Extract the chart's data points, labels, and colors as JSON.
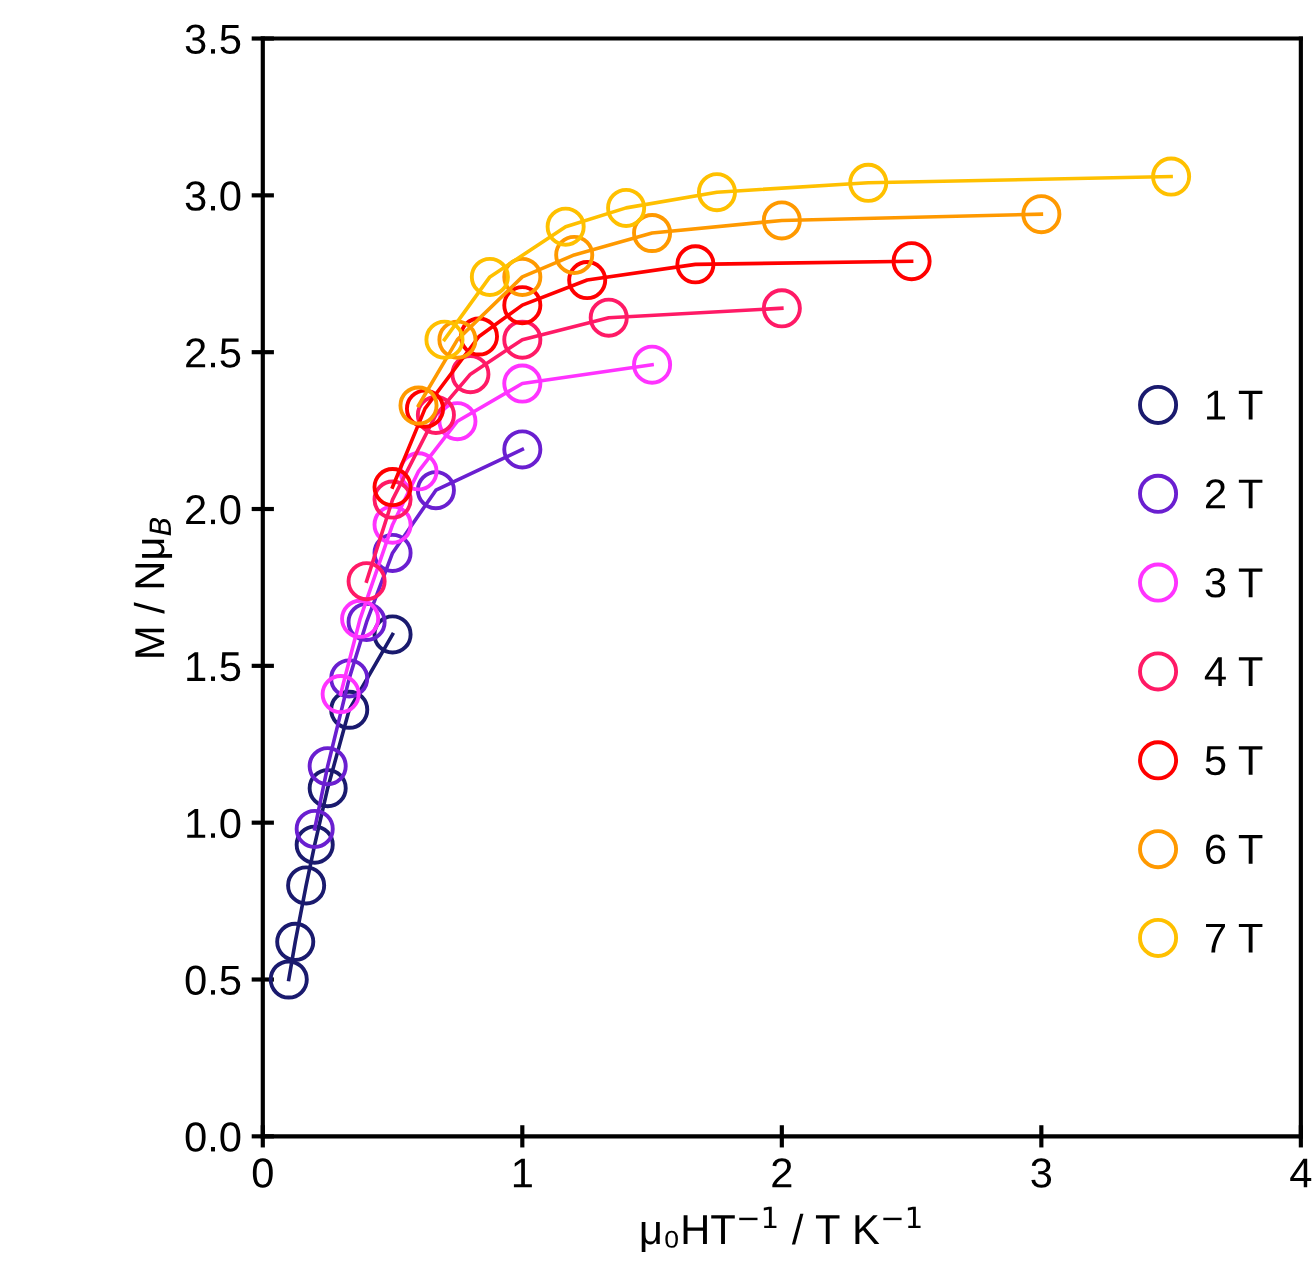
{
  "chart_data": {
    "type": "line",
    "xlabel": "μ₀HT$^{−1}$ / T K$^{−1}$",
    "ylabel": "M / Nμ$_{B}$",
    "xlim": [
      0,
      4
    ],
    "xticks": [
      0,
      1,
      2,
      3,
      4
    ],
    "ylim": [
      0,
      3.5
    ],
    "yticks": [
      {
        "value": 0,
        "label": "0.0"
      },
      0.5,
      {
        "value": 1,
        "label": "1.0"
      },
      1.5,
      {
        "value": 2,
        "label": "2.0"
      },
      2.5,
      {
        "value": 3,
        "label": "3.0"
      },
      3.5
    ],
    "grid": false,
    "legend": "right",
    "marker": "circle",
    "line_style": "solid",
    "series": [
      {
        "name": "1 T",
        "color": "#1a1a6e",
        "x": [
          0.1,
          0.125,
          0.167,
          0.2,
          0.25,
          0.333,
          0.5
        ],
        "values": [
          0.5,
          0.62,
          0.8,
          0.93,
          1.11,
          1.36,
          1.6
        ]
      },
      {
        "name": "2 T",
        "color": "#6a1fd0",
        "x": [
          0.2,
          0.25,
          0.333,
          0.4,
          0.5,
          0.667,
          1.0
        ],
        "values": [
          0.98,
          1.18,
          1.46,
          1.64,
          1.86,
          2.06,
          2.19
        ]
      },
      {
        "name": "3 T",
        "color": "#ff33ff",
        "x": [
          0.3,
          0.375,
          0.5,
          0.6,
          0.75,
          1.0,
          1.5
        ],
        "values": [
          1.41,
          1.65,
          1.95,
          2.12,
          2.28,
          2.4,
          2.46
        ]
      },
      {
        "name": "4 T",
        "color": "#ff1a66",
        "x": [
          0.4,
          0.5,
          0.667,
          0.8,
          1.0,
          1.333,
          2.0
        ],
        "values": [
          1.77,
          2.03,
          2.3,
          2.43,
          2.54,
          2.61,
          2.64
        ]
      },
      {
        "name": "5 T",
        "color": "#ff0000",
        "x": [
          0.5,
          0.625,
          0.833,
          1.0,
          1.25,
          1.667,
          2.5
        ],
        "values": [
          2.07,
          2.32,
          2.55,
          2.65,
          2.73,
          2.78,
          2.79
        ]
      },
      {
        "name": "6 T",
        "color": "#ff9900",
        "x": [
          0.6,
          0.75,
          1.0,
          1.2,
          1.5,
          2.0,
          3.0
        ],
        "values": [
          2.33,
          2.54,
          2.74,
          2.81,
          2.88,
          2.92,
          2.94
        ]
      },
      {
        "name": "7 T",
        "color": "#ffc000",
        "x": [
          0.7,
          0.875,
          1.167,
          1.4,
          1.75,
          2.333,
          3.5
        ],
        "values": [
          2.54,
          2.74,
          2.9,
          2.96,
          3.01,
          3.04,
          3.06
        ]
      }
    ]
  }
}
